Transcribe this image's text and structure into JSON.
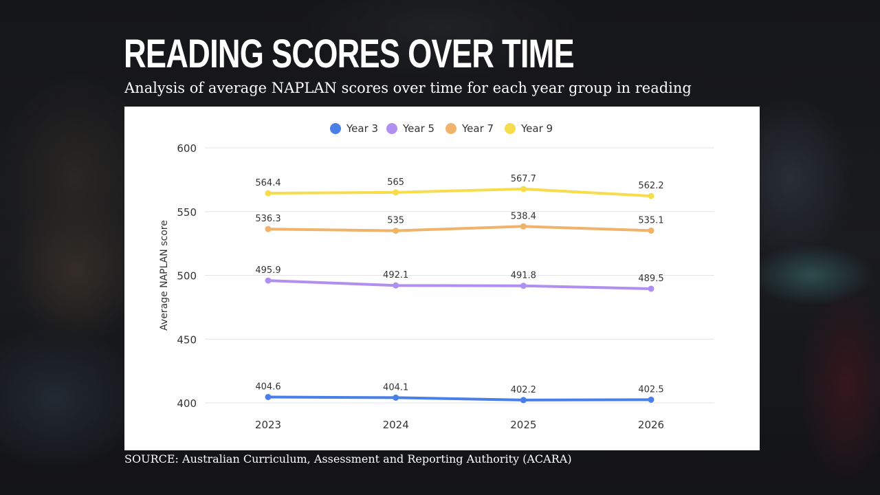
{
  "header": {
    "title": "READING SCORES OVER TIME",
    "subtitle": "Analysis of average NAPLAN scores over time for each year group in reading"
  },
  "footer": {
    "source": "SOURCE: Australian Curriculum, Assessment and Reporting Authority (ACARA)"
  },
  "chart_data": {
    "type": "line",
    "x": [
      "2023",
      "2024",
      "2025",
      "2026"
    ],
    "ylabel": "Average NAPLAN score",
    "xlabel": "",
    "ylim": [
      400,
      600
    ],
    "yticks": [
      400,
      450,
      500,
      550,
      600
    ],
    "grid": true,
    "legend_position": "top-center",
    "series": [
      {
        "name": "Year 3",
        "color": "#4a7fe8",
        "values": [
          404.6,
          404.1,
          402.2,
          402.5
        ],
        "labels": [
          "404.6",
          "404.1",
          "402.2",
          "402.5"
        ]
      },
      {
        "name": "Year 5",
        "color": "#b18ff0",
        "values": [
          495.9,
          492.1,
          491.8,
          489.5
        ],
        "labels": [
          "495.9",
          "492.1",
          "491.8",
          "489.5"
        ]
      },
      {
        "name": "Year 7",
        "color": "#f0b36c",
        "values": [
          536.3,
          535,
          538.4,
          535.1
        ],
        "labels": [
          "536.3",
          "535",
          "538.4",
          "535.1"
        ]
      },
      {
        "name": "Year 9",
        "color": "#f7dc4e",
        "values": [
          564.4,
          565,
          567.7,
          562.2
        ],
        "labels": [
          "564.4",
          "565",
          "567.7",
          "562.2"
        ]
      }
    ]
  }
}
